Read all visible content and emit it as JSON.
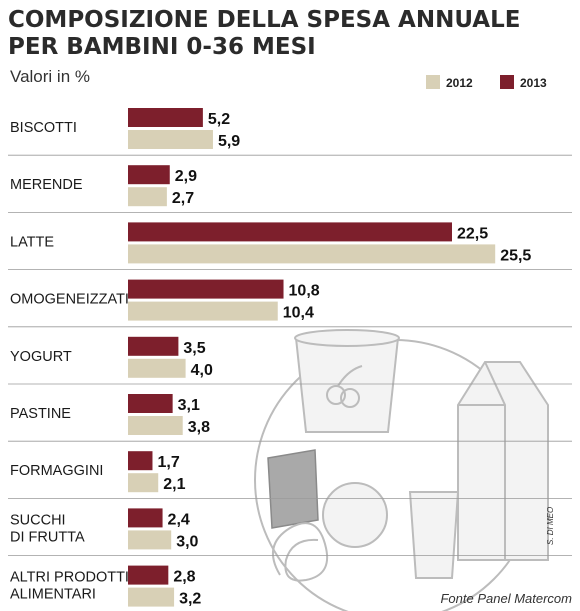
{
  "chart_data": {
    "type": "bar",
    "orientation": "horizontal",
    "title_line1": "COMPOSIZIONE DELLA SPESA ANNUALE",
    "title_line2": "PER BAMBINI 0-36 MESI",
    "subtitle": "Valori in %",
    "categories": [
      [
        "BISCOTTI"
      ],
      [
        "MERENDE"
      ],
      [
        "LATTE"
      ],
      [
        "OMOGENEIZZATI"
      ],
      [
        "YOGURT"
      ],
      [
        "PASTINE"
      ],
      [
        "FORMAGGINI"
      ],
      [
        "SUCCHI",
        "DI FRUTTA"
      ],
      [
        "ALTRI PRODOTTI",
        "ALIMENTARI"
      ]
    ],
    "series": [
      {
        "name": "2013",
        "color": "#7d1f2c",
        "values": [
          5.2,
          2.9,
          22.5,
          10.8,
          3.5,
          3.1,
          1.7,
          2.4,
          2.8
        ],
        "labels": [
          "5,2",
          "2,9",
          "22,5",
          "10,8",
          "3,5",
          "3,1",
          "1,7",
          "2,4",
          "2,8"
        ]
      },
      {
        "name": "2012",
        "color": "#d8d0b6",
        "values": [
          5.9,
          2.7,
          25.5,
          10.4,
          4.0,
          3.8,
          2.1,
          3.0,
          3.2
        ],
        "labels": [
          "5,9",
          "2,7",
          "25,5",
          "10,4",
          "4,0",
          "3,8",
          "2,1",
          "3,0",
          "3,2"
        ]
      }
    ],
    "legend": {
      "position": "top-right",
      "order": [
        "2012",
        "2013"
      ]
    },
    "grid": false,
    "source": "Fonte Panel Matercom",
    "credit": "S. DI MEO"
  }
}
